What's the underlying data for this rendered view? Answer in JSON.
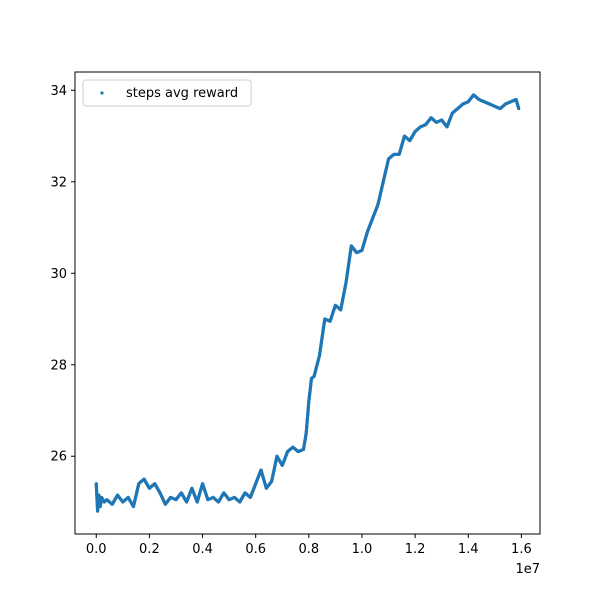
{
  "chart_data": {
    "type": "scatter",
    "title": "",
    "xlabel": "",
    "ylabel": "",
    "x_offset_label": "1e7",
    "xlim": [
      -0.08,
      1.67
    ],
    "ylim": [
      24.3,
      34.4
    ],
    "x_ticks": [
      0.0,
      0.2,
      0.4,
      0.6,
      0.8,
      1.0,
      1.2,
      1.4,
      1.6
    ],
    "x_tick_labels": [
      "0.0",
      "0.2",
      "0.4",
      "0.6",
      "0.8",
      "1.0",
      "1.2",
      "1.4",
      "1.6"
    ],
    "y_ticks": [
      26,
      28,
      30,
      32,
      34
    ],
    "y_tick_labels": [
      "26",
      "28",
      "30",
      "32",
      "34"
    ],
    "grid": false,
    "legend_position": "upper-left",
    "series": [
      {
        "name": "steps avg reward",
        "color": "#1f77b4",
        "x": [
          0.0,
          0.005,
          0.01,
          0.015,
          0.02,
          0.03,
          0.04,
          0.06,
          0.08,
          0.1,
          0.12,
          0.14,
          0.16,
          0.18,
          0.2,
          0.22,
          0.24,
          0.26,
          0.28,
          0.3,
          0.32,
          0.34,
          0.36,
          0.38,
          0.4,
          0.42,
          0.44,
          0.46,
          0.48,
          0.5,
          0.52,
          0.54,
          0.56,
          0.58,
          0.6,
          0.62,
          0.64,
          0.66,
          0.68,
          0.7,
          0.72,
          0.74,
          0.76,
          0.78,
          0.79,
          0.8,
          0.81,
          0.82,
          0.84,
          0.86,
          0.88,
          0.9,
          0.92,
          0.94,
          0.96,
          0.98,
          1.0,
          1.02,
          1.04,
          1.06,
          1.08,
          1.1,
          1.12,
          1.14,
          1.16,
          1.18,
          1.2,
          1.22,
          1.24,
          1.26,
          1.28,
          1.3,
          1.32,
          1.34,
          1.36,
          1.38,
          1.4,
          1.42,
          1.44,
          1.46,
          1.48,
          1.5,
          1.52,
          1.54,
          1.56,
          1.58,
          1.59
        ],
        "y": [
          25.4,
          24.8,
          25.15,
          24.9,
          25.1,
          25.0,
          25.05,
          24.95,
          25.15,
          25.0,
          25.1,
          24.9,
          25.4,
          25.5,
          25.3,
          25.4,
          25.2,
          24.95,
          25.1,
          25.05,
          25.2,
          25.0,
          25.3,
          25.0,
          25.4,
          25.05,
          25.1,
          25.0,
          25.2,
          25.05,
          25.1,
          25.0,
          25.2,
          25.1,
          25.4,
          25.7,
          25.3,
          25.45,
          26.0,
          25.8,
          26.1,
          26.2,
          26.1,
          26.15,
          26.5,
          27.2,
          27.7,
          27.75,
          28.2,
          29.0,
          28.95,
          29.3,
          29.2,
          29.8,
          30.6,
          30.45,
          30.5,
          30.9,
          31.2,
          31.5,
          32.0,
          32.5,
          32.6,
          32.6,
          33.0,
          32.9,
          33.1,
          33.2,
          33.25,
          33.4,
          33.3,
          33.35,
          33.2,
          33.5,
          33.6,
          33.7,
          33.75,
          33.9,
          33.8,
          33.75,
          33.7,
          33.65,
          33.6,
          33.7,
          33.75,
          33.8,
          33.6
        ]
      }
    ]
  }
}
